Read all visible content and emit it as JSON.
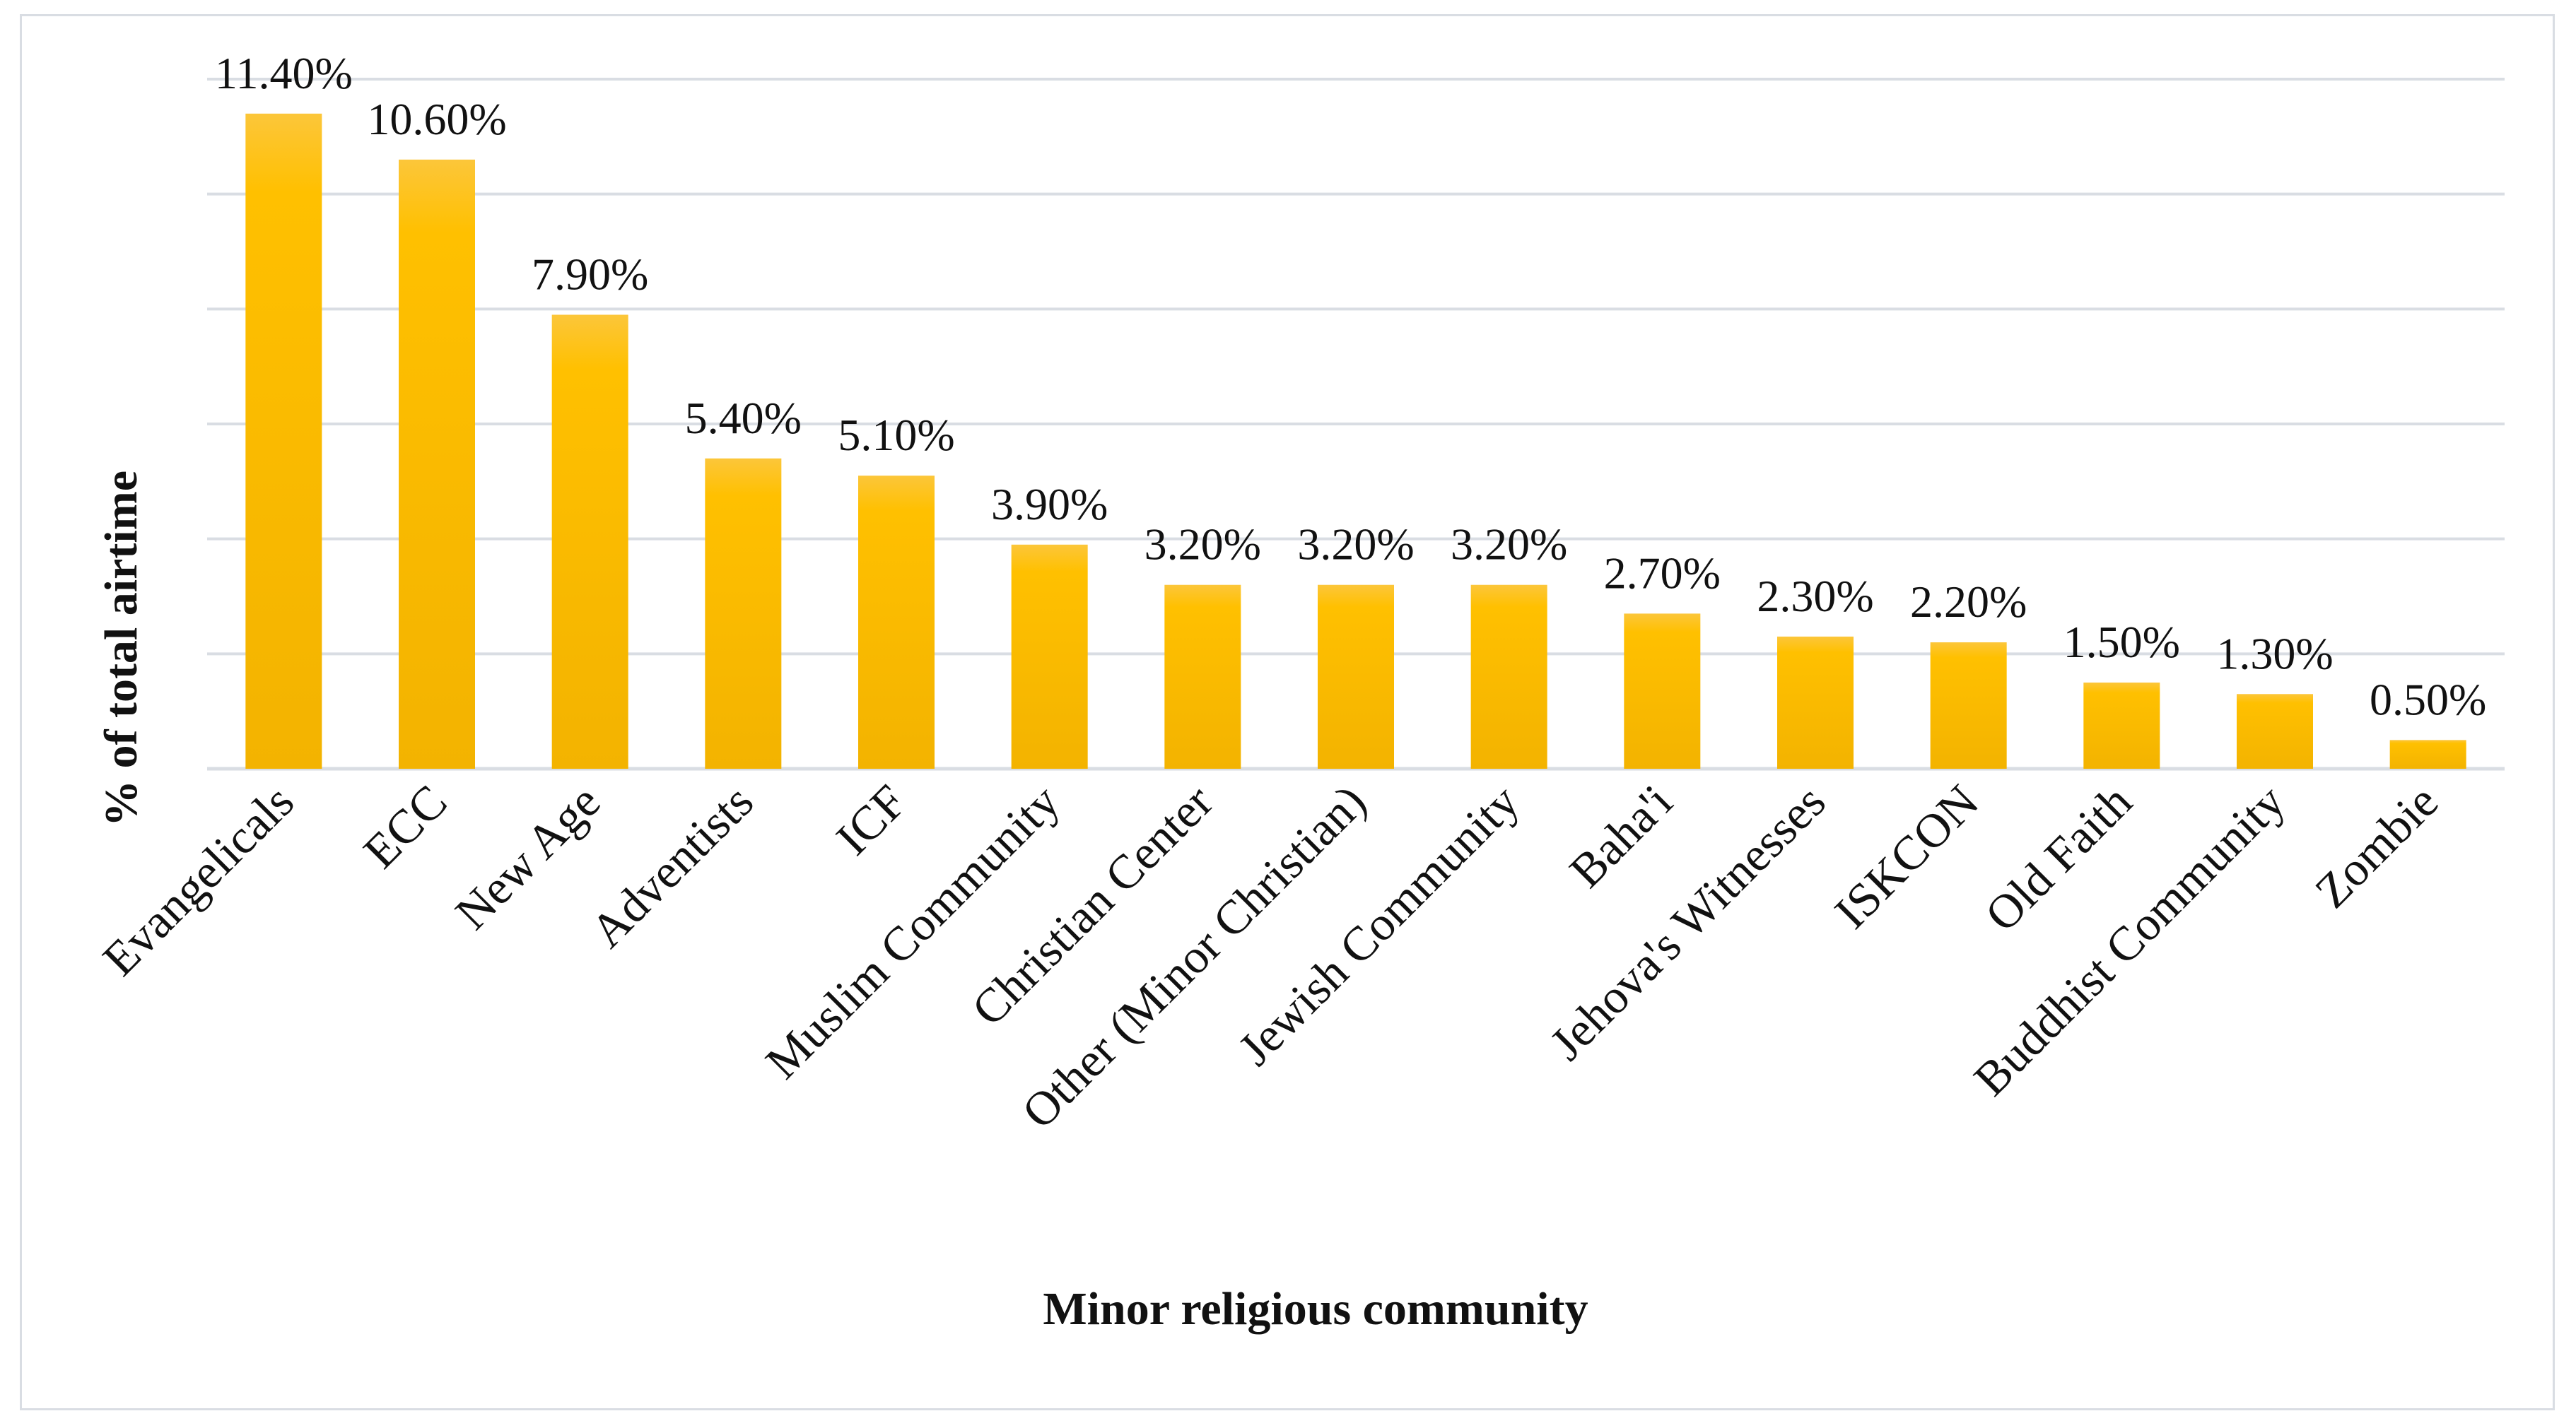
{
  "chart_data": {
    "type": "bar",
    "title": "",
    "xlabel": "Minor religious community",
    "ylabel": "% of total airtime",
    "categories": [
      "Evangelicals",
      "ECC",
      "New Age",
      "Adventists",
      "ICF",
      "Muslim Community",
      "Christian Center",
      "Other (Minor Christian)",
      "Jewish Community",
      "Baha'i",
      "Jehova's Witnesses",
      "ISKCON",
      "Old Faith",
      "Buddhist Community",
      "Zombie"
    ],
    "values": [
      11.4,
      10.6,
      7.9,
      5.4,
      5.1,
      3.9,
      3.2,
      3.2,
      3.2,
      2.7,
      2.3,
      2.2,
      1.5,
      1.3,
      0.5
    ],
    "data_labels": [
      "11.40%",
      "10.60%",
      "7.90%",
      "5.40%",
      "5.10%",
      "3.90%",
      "3.20%",
      "3.20%",
      "3.20%",
      "2.70%",
      "2.30%",
      "2.20%",
      "1.50%",
      "1.30%",
      "0.50%"
    ],
    "ylim": [
      0,
      12
    ],
    "gridlines": [
      2,
      4,
      6,
      8,
      10,
      12
    ],
    "grid": true,
    "y_tick_labels_shown": false,
    "colors": {
      "bar_top": "#fcc63a",
      "bar_mid": "#ffc000",
      "bar_bottom": "#f3b300",
      "gridline": "#d9dde3",
      "text": "#111111"
    }
  }
}
